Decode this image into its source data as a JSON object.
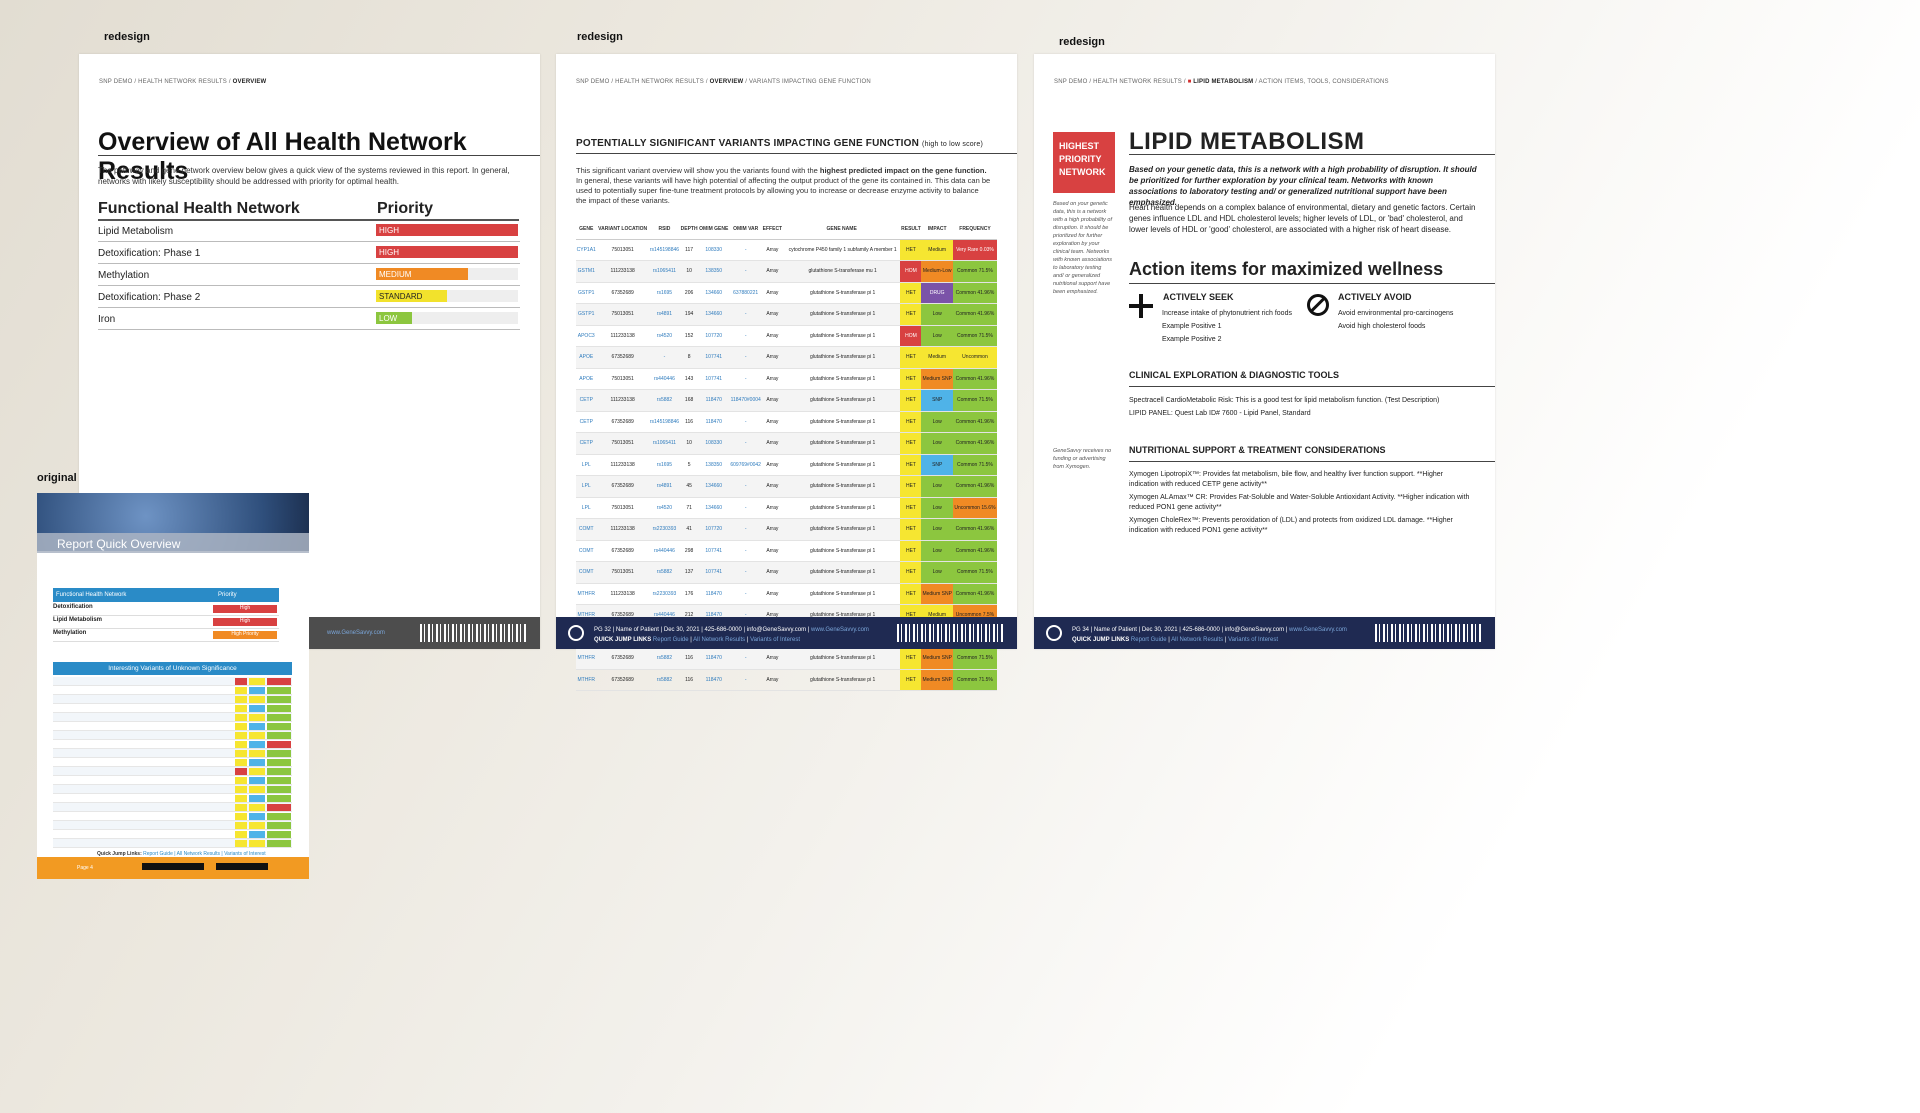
{
  "captions": {
    "redesign1": "redesign",
    "redesign2": "redesign",
    "redesign3": "redesign",
    "original": "original"
  },
  "page1": {
    "breadcrumb": {
      "a": "SNP DEMO",
      "b": "HEALTH NETWORK RESULTS",
      "c": "OVERVIEW"
    },
    "title": "Overview of All Health Network Results",
    "intro": "The pathway and gene network overview below gives a quick view of the systems reviewed in this report. In general, networks with likely susceptibility should be addressed with priority for optimal health.",
    "col_network": "Functional Health Network",
    "col_priority": "Priority",
    "rows": [
      {
        "name": "Lipid Metabolism",
        "priority": "HIGH",
        "color": "#d84141",
        "fill": 1.0
      },
      {
        "name": "Detoxification: Phase 1",
        "priority": "HIGH",
        "color": "#d84141",
        "fill": 1.0
      },
      {
        "name": "Methylation",
        "priority": "MEDIUM",
        "color": "#f08a24",
        "fill": 0.65
      },
      {
        "name": "Detoxification: Phase 2",
        "priority": "STANDARD",
        "color": "#f2e22c",
        "fill": 0.5
      },
      {
        "name": "Iron",
        "priority": "LOW",
        "color": "#8cc63f",
        "fill": 0.25
      }
    ],
    "footer": {
      "site": "www.GeneSavvy.com"
    }
  },
  "page2": {
    "breadcrumb": {
      "a": "SNP DEMO",
      "b": "HEALTH NETWORK RESULTS",
      "c": "OVERVIEW",
      "d": "VARIANTS IMPACTING GENE FUNCTION"
    },
    "title": "POTENTIALLY SIGNIFICANT VARIANTS IMPACTING GENE FUNCTION",
    "title_note": "(high to low score)",
    "intro_a": "This significant variant overview will show you the variants found with the ",
    "intro_b": "highest predicted impact on the gene function.",
    "intro_c": " In general, these variants will have high potential of affecting the output product of the gene its contained in. This data can be used to potentially super fine-tune treatment protocols by allowing you to increase or decrease enzyme activity to balance the impact of these variants.",
    "headers": [
      "GENE",
      "VARIANT LOCATION",
      "RSID",
      "DEPTH",
      "OMIM GENE",
      "OMIM VAR",
      "EFFECT",
      "GENE NAME",
      "RESULT",
      "IMPACT",
      "FREQUENCY"
    ],
    "rows": [
      [
        "CYP1A1",
        "75013051",
        "rs145198846",
        "117",
        "108330",
        "-",
        "Array",
        "cytochrome P450 family 1 subfamily A member 1",
        "HET",
        "Medium",
        "Very Rare 0.03%"
      ],
      [
        "GSTM1",
        "111233138",
        "rs1065411",
        "10",
        "138350",
        "-",
        "Array",
        "glutathione S-transferase mu 1",
        "HOM",
        "Medium-Low",
        "Common 71.5%"
      ],
      [
        "GSTP1",
        "67352689",
        "rs1695",
        "206",
        "134660",
        "637880221",
        "Array",
        "glutathione S-transferase pi 1",
        "HET",
        "DRUG",
        "Common 41.96%"
      ],
      [
        "GSTP1",
        "75013051",
        "rs4891",
        "194",
        "134660",
        "-",
        "Array",
        "glutathione S-transferase pi 1",
        "HET",
        "Low",
        "Common 41.96%"
      ],
      [
        "APOC3",
        "111233138",
        "rs4520",
        "152",
        "107720",
        "-",
        "Array",
        "glutathione S-transferase pi 1",
        "HOM",
        "Low",
        "Common 71.5%"
      ],
      [
        "APOE",
        "67352689",
        "-",
        "8",
        "107741",
        "-",
        "Array",
        "glutathione S-transferase pi 1",
        "HET",
        "Medium",
        "Uncommon"
      ],
      [
        "APOE",
        "75013051",
        "rs440446",
        "143",
        "107741",
        "-",
        "Array",
        "glutathione S-transferase pi 1",
        "HET",
        "Medium SNP",
        "Common 41.96%"
      ],
      [
        "CETP",
        "111233138",
        "rs5882",
        "168",
        "118470",
        "118470#0004",
        "Array",
        "glutathione S-transferase pi 1",
        "HET",
        "SNP",
        "Common 71.5%"
      ],
      [
        "CETP",
        "67352689",
        "rs145198846",
        "116",
        "118470",
        "-",
        "Array",
        "glutathione S-transferase pi 1",
        "HET",
        "Low",
        "Common 41.96%"
      ],
      [
        "CETP",
        "75013051",
        "rs1065411",
        "10",
        "108330",
        "-",
        "Array",
        "glutathione S-transferase pi 1",
        "HET",
        "Low",
        "Common 41.96%"
      ],
      [
        "LPL",
        "111233138",
        "rs1695",
        "5",
        "138350",
        "609769#0042",
        "Array",
        "glutathione S-transferase pi 1",
        "HET",
        "SNP",
        "Common 71.5%"
      ],
      [
        "LPL",
        "67352689",
        "rs4891",
        "45",
        "134660",
        "-",
        "Array",
        "glutathione S-transferase pi 1",
        "HET",
        "Low",
        "Common 41.96%"
      ],
      [
        "LPL",
        "75013051",
        "rs4520",
        "71",
        "134660",
        "-",
        "Array",
        "glutathione S-transferase pi 1",
        "HET",
        "Low",
        "Uncommon 15.6%"
      ],
      [
        "COMT",
        "111233138",
        "rs2230393",
        "41",
        "107720",
        "-",
        "Array",
        "glutathione S-transferase pi 1",
        "HET",
        "Low",
        "Common 41.96%"
      ],
      [
        "COMT",
        "67352689",
        "rs440446",
        "298",
        "107741",
        "-",
        "Array",
        "glutathione S-transferase pi 1",
        "HET",
        "Low",
        "Common 41.96%"
      ],
      [
        "COMT",
        "75013051",
        "rs5882",
        "137",
        "107741",
        "-",
        "Array",
        "glutathione S-transferase pi 1",
        "HET",
        "Low",
        "Common 71.5%"
      ],
      [
        "MTHFR",
        "111233138",
        "rs2230393",
        "176",
        "118470",
        "-",
        "Array",
        "glutathione S-transferase pi 1",
        "HET",
        "Medium SNP",
        "Common 41.96%"
      ],
      [
        "MTHFR",
        "67352689",
        "rs440446",
        "212",
        "118470",
        "-",
        "Array",
        "glutathione S-transferase pi 1",
        "HET",
        "Medium",
        "Uncommon 7.5%"
      ],
      [
        "MTHFR",
        "67352689",
        "rs5882",
        "116",
        "118470",
        "-",
        "Array",
        "glutathione S-transferase pi 1",
        "HET",
        "Medium SNP",
        "Common 71.5%"
      ],
      [
        "MTHFR",
        "67352689",
        "rs5882",
        "116",
        "118470",
        "-",
        "Array",
        "glutathione S-transferase pi 1",
        "HET",
        "Medium SNP",
        "Common 71.5%"
      ],
      [
        "MTHFR",
        "67352689",
        "rs5882",
        "116",
        "118470",
        "-",
        "Array",
        "glutathione S-transferase pi 1",
        "HET",
        "Medium SNP",
        "Common 71.5%"
      ]
    ],
    "colors": {
      "HET": "#f6e631",
      "HOM": "#d84141",
      "Medium": "#f6e631",
      "Medium-Low": "#f08a24",
      "DRUG": "#7b53a8",
      "Low": "#8cc63f",
      "Medium SNP": "#f08a24",
      "SNP": "#4fb3e8",
      "Very Rare 0.03%": "#d84141",
      "Uncommon": "#f6e631",
      "Uncommon 15.6%": "#f08a24",
      "Uncommon 7.5%": "#f08a24",
      "Common": "#8cc63f"
    },
    "footer": {
      "pg": "PG 32",
      "patient": "Name of Patient",
      "date": "Dec 30, 2021",
      "phone": "425-686-0000",
      "email": "info@GeneSavvy.com",
      "site": "www.GeneSavvy.com",
      "quick": "QUICK JUMP LINKS",
      "l1": "Report Guide",
      "l2": "All Network Results",
      "l3": "Variants of Interest"
    }
  },
  "page3": {
    "breadcrumb": {
      "a": "SNP DEMO",
      "b": "HEALTH NETWORK RESULTS",
      "c": "LIPID METABOLISM",
      "d": "ACTION ITEMS, TOOLS, CONSIDERATIONS"
    },
    "box": "HIGHEST PRIORITY NETWORK",
    "side_note": "Based on your genetic data, this is a network with a high probability of disruption. It should be prioritized for further exploration by your clinical team. Networks with known associations to laboratory testing and/ or generalized nutritional support have been emphasized.",
    "side_note2": "GeneSavvy receives no funding or advertising from Xymogen.",
    "title": "LIPID METABOLISM",
    "lead": "Based on your genetic data, this is a network with a high probability of disruption. It should be prioritized for further exploration by your clinical team. Networks with known associations to laboratory testing and/ or generalized nutritional support have been emphasized.",
    "body": "Heart health depends on a complex balance of environmental, dietary and genetic factors. Certain genes influence LDL and HDL cholesterol levels; higher levels of LDL, or 'bad' cholesterol, and lower levels of HDL or 'good' cholesterol, are associated with a higher risk of heart disease.",
    "actions_title": "Action items for maximized wellness",
    "seek": {
      "title": "ACTIVELY SEEK",
      "items": [
        "Increase intake of phytonutrient rich foods",
        "Example Positive 1",
        "Example Positive 2"
      ]
    },
    "avoid": {
      "title": "ACTIVELY AVOID",
      "items": [
        "Avoid environmental pro-carcinogens",
        "Avoid high cholesterol foods"
      ]
    },
    "clinical_title": "CLINICAL EXPLORATION & DIAGNOSTIC TOOLS",
    "clinical": [
      "Spectracell CardioMetabolic Risk: This is a good test for lipid metabolism function. (Test Description)",
      "LIPID PANEL: Quest Lab ID# 7600 - Lipid Panel, Standard"
    ],
    "nutr_title": "NUTRITIONAL SUPPORT & TREATMENT CONSIDERATIONS",
    "nutr": [
      "Xymogen LipotropiX™: Provides fat metabolism, bile flow, and healthy liver function support. **Higher indication with reduced CETP gene activity**",
      "Xymogen ALAmax™ CR: Provides Fat-Soluble and Water-Soluble Antioxidant Activity. **Higher indication with reduced PON1 gene activity**",
      "Xymogen CholeRex™: Prevents peroxidation of (LDL) and protects from oxidized LDL damage. **Higher indication with reduced PON1 gene activity**"
    ],
    "footer": {
      "pg": "PG 34",
      "patient": "Name of Patient",
      "date": "Dec 30, 2021",
      "phone": "425-686-0000",
      "email": "info@GeneSavvy.com",
      "site": "www.GeneSavvy.com",
      "quick": "QUICK JUMP LINKS",
      "l1": "Report Guide",
      "l2": "All Network Results",
      "l3": "Variants of Interest"
    }
  },
  "original": {
    "title": "Report Quick Overview",
    "col_network": "Functional Health Network",
    "col_priority": "Priority",
    "rows": [
      {
        "name": "Detoxification",
        "priority": "High",
        "color": "#d84141"
      },
      {
        "name": "Lipid Metabolism",
        "priority": "High",
        "color": "#d84141"
      },
      {
        "name": "Methylation",
        "priority": "High Priority",
        "color": "#f08a24"
      }
    ],
    "table_title": "Interesting Variants of Unknown Significance",
    "quick": "Quick Jump Links:",
    "links": "Report Guide | All Network Results | Variants of Interest",
    "page": "Page 4"
  }
}
